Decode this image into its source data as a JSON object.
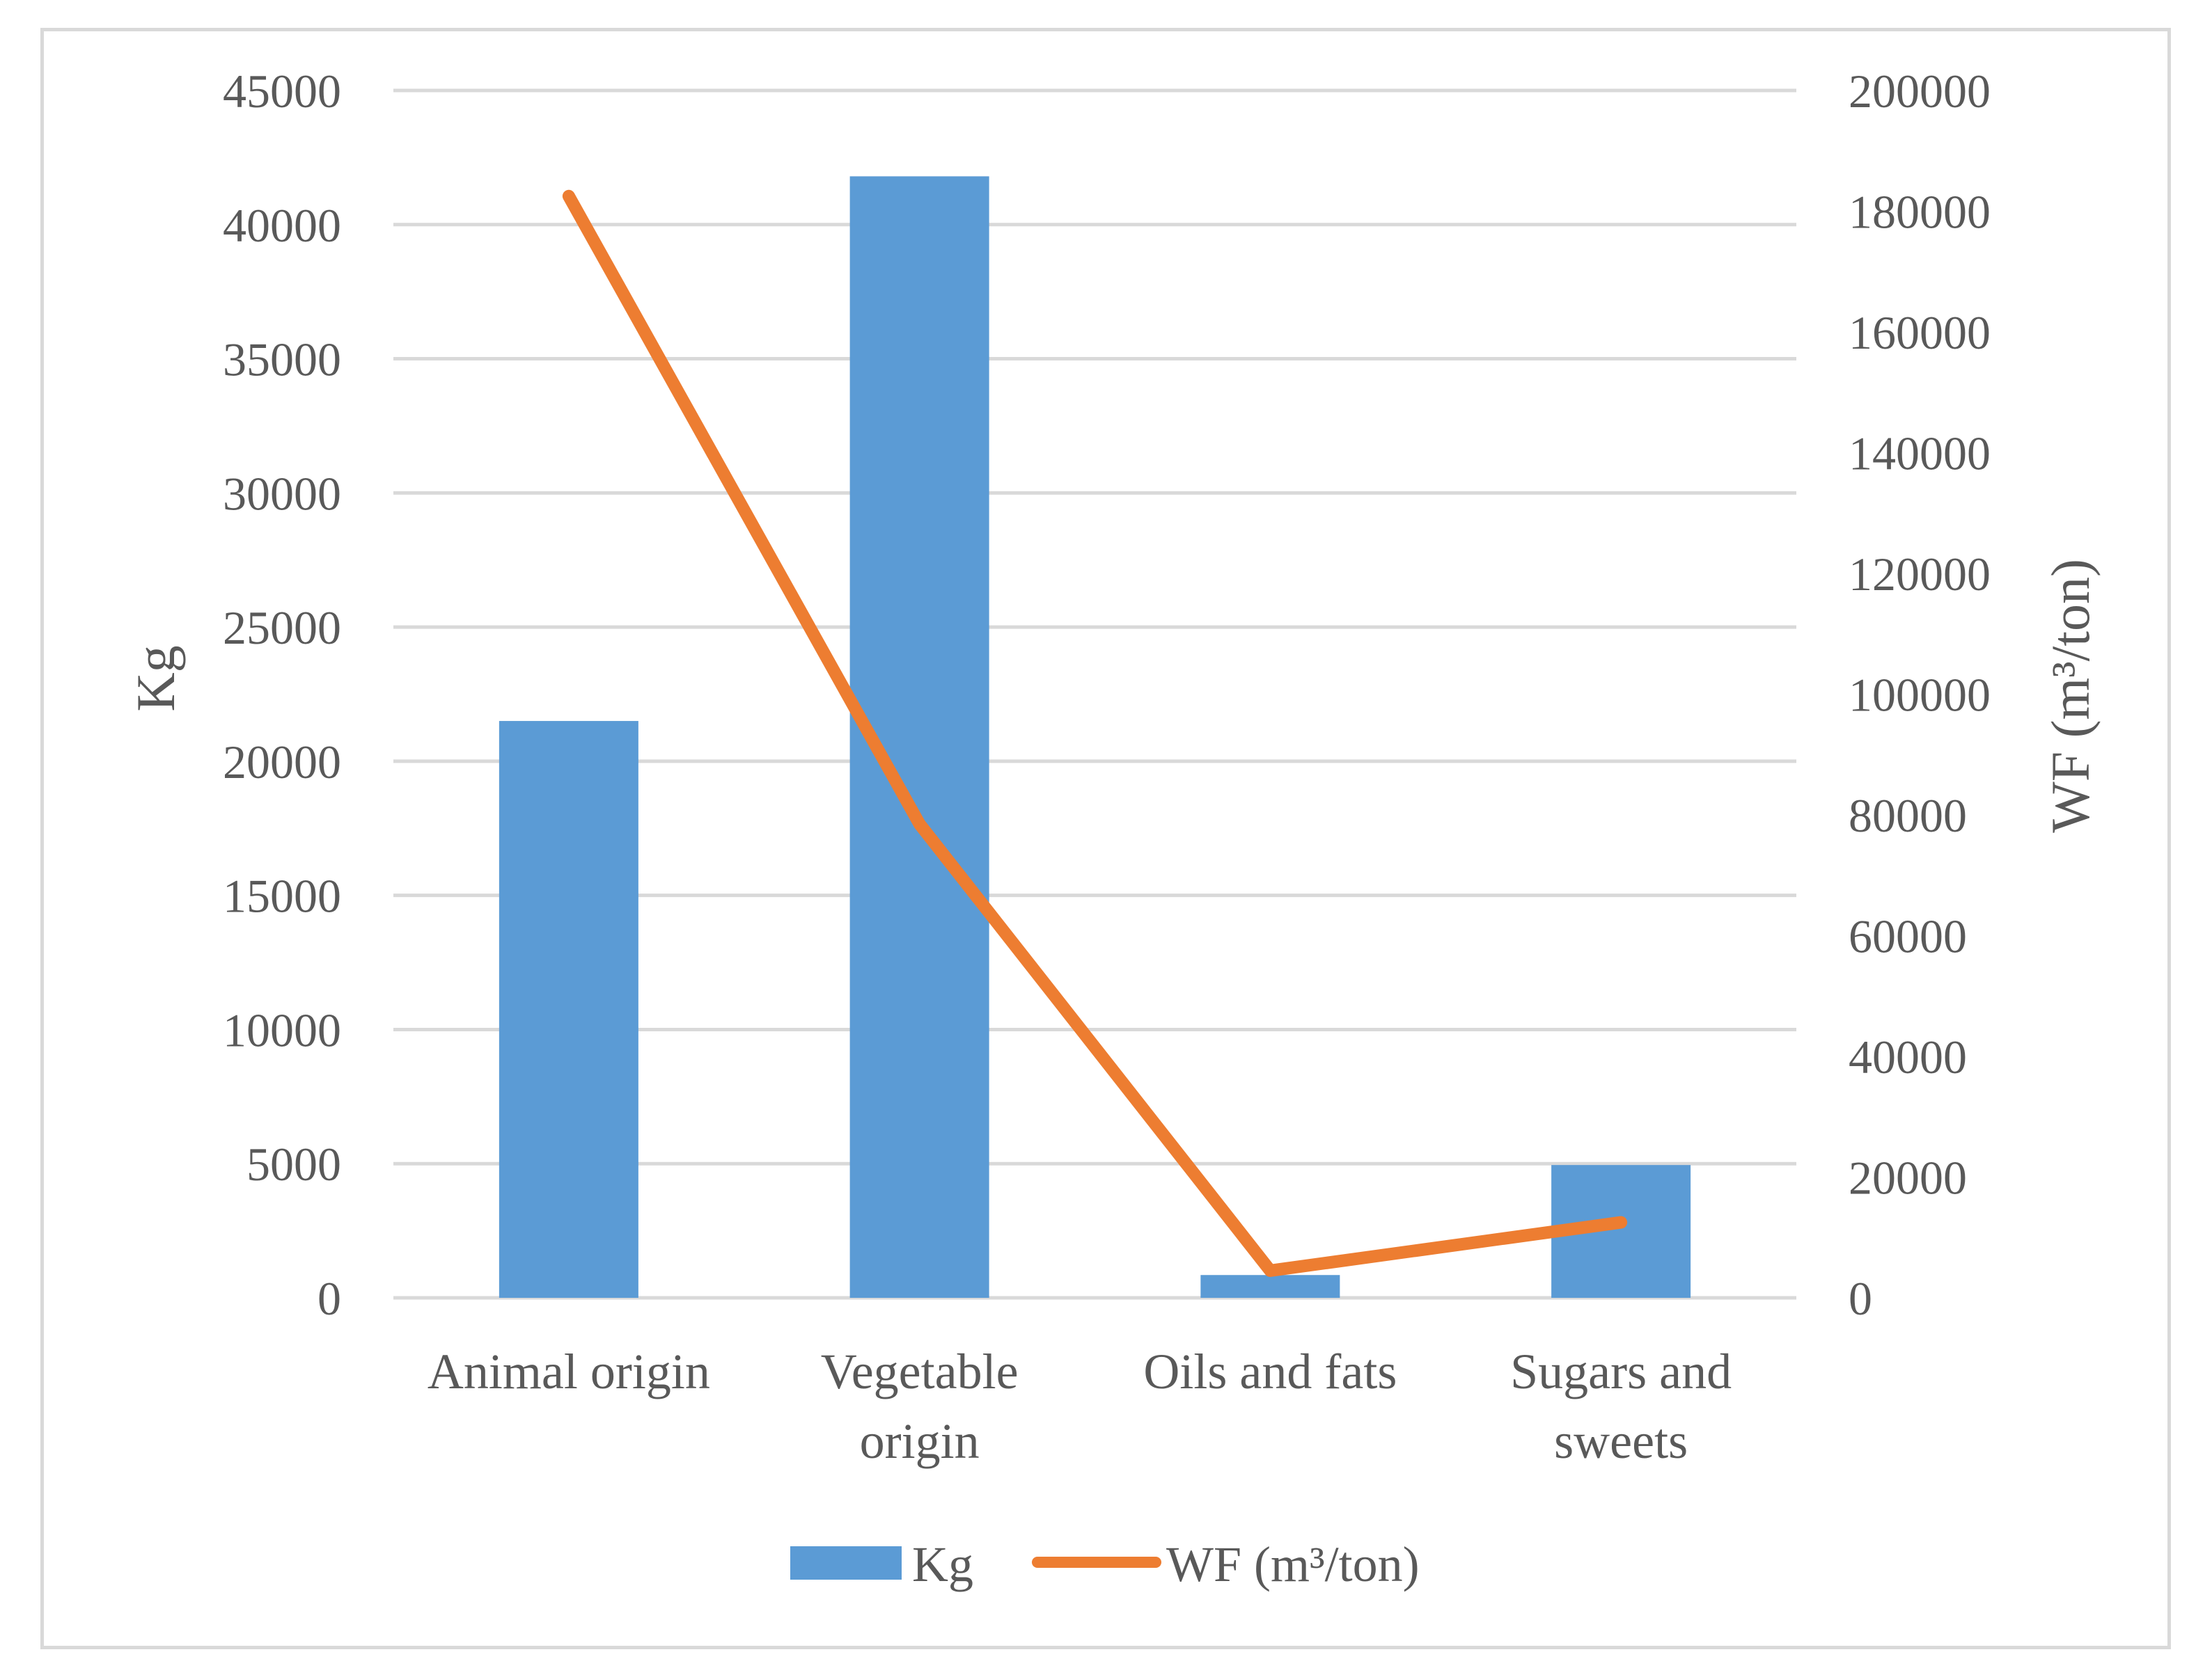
{
  "chart_data": {
    "type": "bar+line",
    "categories": [
      [
        "Animal origin"
      ],
      [
        "Vegetable",
        "origin"
      ],
      [
        "Oils and fats"
      ],
      [
        "Sugars and",
        "sweets"
      ]
    ],
    "series": [
      {
        "name": "Kg",
        "type": "bar",
        "axis": "left",
        "color": "#5b9bd5",
        "values": [
          21500,
          41800,
          850,
          4950
        ]
      },
      {
        "name": "WF (m³/ton)",
        "type": "line",
        "axis": "right",
        "color": "#ed7d31",
        "values": [
          182500,
          78500,
          4500,
          12500
        ]
      }
    ],
    "y_left": {
      "label": "Kg",
      "min": 0,
      "max": 45000,
      "step": 5000,
      "ticks": [
        "0",
        "5000",
        "10000",
        "15000",
        "20000",
        "25000",
        "30000",
        "35000",
        "40000",
        "45000"
      ]
    },
    "y_right": {
      "label": "WF (m³/ton)",
      "min": 0,
      "max": 200000,
      "step": 20000,
      "ticks": [
        "0",
        "20000",
        "40000",
        "60000",
        "80000",
        "100000",
        "120000",
        "140000",
        "160000",
        "180000",
        "200000"
      ]
    },
    "grid": true,
    "legend": {
      "position": "bottom",
      "entries": [
        "Kg",
        "WF (m³/ton)"
      ]
    },
    "gridline_color": "#d9d9d9"
  }
}
